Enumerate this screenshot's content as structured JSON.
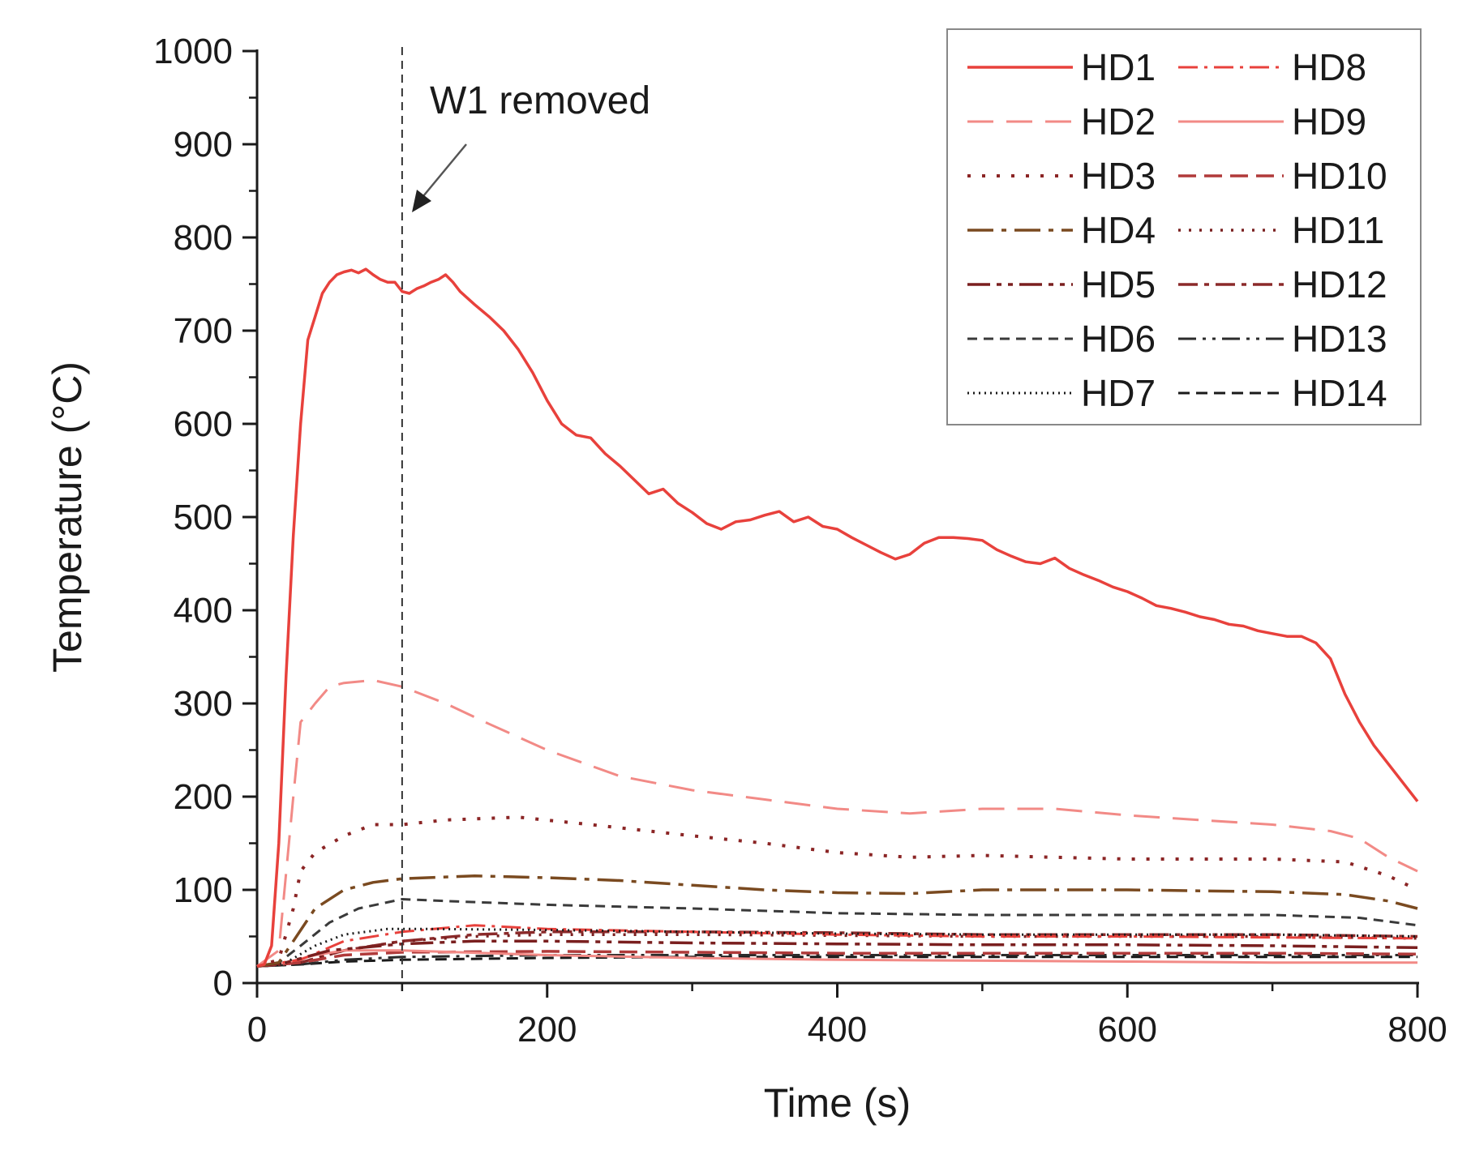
{
  "chart_data": {
    "type": "line",
    "title": "",
    "xlabel": "Time (s)",
    "ylabel": "Temperature (°C)",
    "xlim": [
      0,
      800
    ],
    "ylim": [
      0,
      1000
    ],
    "xticks": [
      0,
      200,
      400,
      600,
      800
    ],
    "yticks": [
      0,
      100,
      200,
      300,
      400,
      500,
      600,
      700,
      800,
      900,
      1000
    ],
    "grid": false,
    "legend_position": "top-right",
    "annotation": {
      "text": "W1 removed",
      "x": 100
    },
    "series": [
      {
        "name": "HD1",
        "color": "#e8413c",
        "dash": "solid",
        "width": 3.5,
        "points": [
          [
            0,
            18
          ],
          [
            5,
            20
          ],
          [
            10,
            40
          ],
          [
            15,
            150
          ],
          [
            20,
            330
          ],
          [
            25,
            480
          ],
          [
            30,
            600
          ],
          [
            35,
            690
          ],
          [
            40,
            715
          ],
          [
            45,
            740
          ],
          [
            50,
            752
          ],
          [
            55,
            760
          ],
          [
            60,
            763
          ],
          [
            65,
            765
          ],
          [
            70,
            762
          ],
          [
            75,
            766
          ],
          [
            80,
            760
          ],
          [
            85,
            755
          ],
          [
            90,
            752
          ],
          [
            95,
            752
          ],
          [
            100,
            742
          ],
          [
            105,
            740
          ],
          [
            110,
            745
          ],
          [
            115,
            748
          ],
          [
            120,
            752
          ],
          [
            125,
            755
          ],
          [
            130,
            760
          ],
          [
            135,
            752
          ],
          [
            140,
            742
          ],
          [
            145,
            735
          ],
          [
            150,
            728
          ],
          [
            160,
            715
          ],
          [
            170,
            700
          ],
          [
            180,
            680
          ],
          [
            190,
            655
          ],
          [
            200,
            625
          ],
          [
            210,
            600
          ],
          [
            220,
            588
          ],
          [
            230,
            585
          ],
          [
            240,
            568
          ],
          [
            250,
            555
          ],
          [
            260,
            540
          ],
          [
            270,
            525
          ],
          [
            280,
            530
          ],
          [
            290,
            515
          ],
          [
            300,
            505
          ],
          [
            310,
            493
          ],
          [
            320,
            487
          ],
          [
            330,
            495
          ],
          [
            340,
            497
          ],
          [
            350,
            502
          ],
          [
            360,
            506
          ],
          [
            370,
            495
          ],
          [
            380,
            500
          ],
          [
            390,
            490
          ],
          [
            400,
            487
          ],
          [
            410,
            478
          ],
          [
            420,
            470
          ],
          [
            430,
            462
          ],
          [
            440,
            455
          ],
          [
            450,
            460
          ],
          [
            460,
            472
          ],
          [
            470,
            478
          ],
          [
            480,
            478
          ],
          [
            490,
            477
          ],
          [
            500,
            475
          ],
          [
            510,
            465
          ],
          [
            520,
            458
          ],
          [
            530,
            452
          ],
          [
            540,
            450
          ],
          [
            550,
            456
          ],
          [
            560,
            445
          ],
          [
            570,
            438
          ],
          [
            580,
            432
          ],
          [
            590,
            425
          ],
          [
            600,
            420
          ],
          [
            610,
            413
          ],
          [
            620,
            405
          ],
          [
            630,
            402
          ],
          [
            640,
            398
          ],
          [
            650,
            393
          ],
          [
            660,
            390
          ],
          [
            670,
            385
          ],
          [
            680,
            383
          ],
          [
            690,
            378
          ],
          [
            700,
            375
          ],
          [
            710,
            372
          ],
          [
            720,
            372
          ],
          [
            730,
            365
          ],
          [
            740,
            348
          ],
          [
            750,
            310
          ],
          [
            760,
            280
          ],
          [
            770,
            255
          ],
          [
            780,
            235
          ],
          [
            790,
            215
          ],
          [
            800,
            195
          ]
        ]
      },
      {
        "name": "HD2",
        "color": "#f28a86",
        "dash": "32,16",
        "width": 3,
        "points": [
          [
            0,
            18
          ],
          [
            15,
            35
          ],
          [
            25,
            200
          ],
          [
            30,
            280
          ],
          [
            40,
            300
          ],
          [
            50,
            318
          ],
          [
            60,
            322
          ],
          [
            80,
            325
          ],
          [
            100,
            318
          ],
          [
            130,
            300
          ],
          [
            160,
            278
          ],
          [
            200,
            250
          ],
          [
            250,
            222
          ],
          [
            300,
            207
          ],
          [
            350,
            197
          ],
          [
            400,
            187
          ],
          [
            450,
            182
          ],
          [
            500,
            187
          ],
          [
            550,
            187
          ],
          [
            600,
            180
          ],
          [
            650,
            175
          ],
          [
            700,
            170
          ],
          [
            740,
            163
          ],
          [
            760,
            155
          ],
          [
            780,
            135
          ],
          [
            800,
            120
          ]
        ]
      },
      {
        "name": "HD3",
        "color": "#8b2525",
        "dash": "4,14",
        "width": 4,
        "points": [
          [
            0,
            18
          ],
          [
            15,
            25
          ],
          [
            25,
            80
          ],
          [
            30,
            120
          ],
          [
            40,
            140
          ],
          [
            60,
            158
          ],
          [
            80,
            170
          ],
          [
            100,
            170
          ],
          [
            130,
            175
          ],
          [
            180,
            178
          ],
          [
            230,
            170
          ],
          [
            300,
            158
          ],
          [
            350,
            150
          ],
          [
            400,
            140
          ],
          [
            450,
            135
          ],
          [
            500,
            137
          ],
          [
            550,
            135
          ],
          [
            600,
            133
          ],
          [
            650,
            133
          ],
          [
            700,
            133
          ],
          [
            750,
            130
          ],
          [
            780,
            115
          ],
          [
            800,
            100
          ]
        ]
      },
      {
        "name": "HD4",
        "color": "#7a4a20",
        "dash": "32,10,6,10",
        "width": 3.5,
        "points": [
          [
            0,
            18
          ],
          [
            15,
            22
          ],
          [
            25,
            45
          ],
          [
            40,
            80
          ],
          [
            60,
            100
          ],
          [
            80,
            108
          ],
          [
            100,
            112
          ],
          [
            150,
            115
          ],
          [
            200,
            113
          ],
          [
            250,
            110
          ],
          [
            300,
            105
          ],
          [
            350,
            100
          ],
          [
            400,
            97
          ],
          [
            450,
            96
          ],
          [
            500,
            100
          ],
          [
            550,
            100
          ],
          [
            600,
            100
          ],
          [
            650,
            99
          ],
          [
            700,
            98
          ],
          [
            750,
            95
          ],
          [
            780,
            88
          ],
          [
            800,
            80
          ]
        ]
      },
      {
        "name": "HD5",
        "color": "#7a1f1f",
        "dash": "28,8,6,8,6,8",
        "width": 3.5,
        "points": [
          [
            0,
            18
          ],
          [
            20,
            22
          ],
          [
            50,
            35
          ],
          [
            100,
            42
          ],
          [
            150,
            45
          ],
          [
            200,
            45
          ],
          [
            300,
            43
          ],
          [
            400,
            42
          ],
          [
            500,
            41
          ],
          [
            600,
            41
          ],
          [
            700,
            40
          ],
          [
            800,
            38
          ]
        ]
      },
      {
        "name": "HD6",
        "color": "#3a3a3a",
        "dash": "12,8",
        "width": 3,
        "points": [
          [
            0,
            18
          ],
          [
            15,
            22
          ],
          [
            30,
            40
          ],
          [
            50,
            65
          ],
          [
            70,
            80
          ],
          [
            100,
            90
          ],
          [
            130,
            88
          ],
          [
            200,
            84
          ],
          [
            300,
            80
          ],
          [
            400,
            75
          ],
          [
            500,
            73
          ],
          [
            600,
            73
          ],
          [
            700,
            73
          ],
          [
            760,
            70
          ],
          [
            800,
            62
          ]
        ]
      },
      {
        "name": "HD7",
        "color": "#1a1a1a",
        "dash": "2,5",
        "width": 3,
        "points": [
          [
            0,
            18
          ],
          [
            20,
            22
          ],
          [
            40,
            40
          ],
          [
            60,
            52
          ],
          [
            90,
            58
          ],
          [
            120,
            58
          ],
          [
            200,
            57
          ],
          [
            300,
            55
          ],
          [
            400,
            53
          ],
          [
            500,
            52
          ],
          [
            600,
            52
          ],
          [
            700,
            52
          ],
          [
            800,
            50
          ]
        ]
      },
      {
        "name": "HD8",
        "color": "#e8413c",
        "dash": "24,8,4,8",
        "width": 3,
        "points": [
          [
            0,
            18
          ],
          [
            30,
            25
          ],
          [
            60,
            45
          ],
          [
            100,
            55
          ],
          [
            150,
            62
          ],
          [
            200,
            58
          ],
          [
            300,
            55
          ],
          [
            400,
            52
          ],
          [
            500,
            50
          ],
          [
            600,
            50
          ],
          [
            700,
            49
          ],
          [
            800,
            48
          ]
        ]
      },
      {
        "name": "HD9",
        "color": "#f28a86",
        "dash": "solid",
        "width": 3,
        "points": [
          [
            0,
            18
          ],
          [
            20,
            22
          ],
          [
            40,
            30
          ],
          [
            60,
            35
          ],
          [
            100,
            35
          ],
          [
            200,
            30
          ],
          [
            300,
            27
          ],
          [
            400,
            25
          ],
          [
            500,
            24
          ],
          [
            600,
            23
          ],
          [
            700,
            22
          ],
          [
            800,
            22
          ]
        ]
      },
      {
        "name": "HD10",
        "color": "#b03a3a",
        "dash": "22,10",
        "width": 3.5,
        "points": [
          [
            0,
            18
          ],
          [
            30,
            22
          ],
          [
            60,
            30
          ],
          [
            100,
            33
          ],
          [
            200,
            34
          ],
          [
            300,
            33
          ],
          [
            400,
            32
          ],
          [
            500,
            32
          ],
          [
            600,
            32
          ],
          [
            700,
            32
          ],
          [
            800,
            31
          ]
        ]
      },
      {
        "name": "HD11",
        "color": "#7a2020",
        "dash": "3,10",
        "width": 3.5,
        "points": [
          [
            0,
            18
          ],
          [
            30,
            22
          ],
          [
            60,
            35
          ],
          [
            100,
            45
          ],
          [
            150,
            50
          ],
          [
            200,
            52
          ],
          [
            300,
            52
          ],
          [
            400,
            51
          ],
          [
            500,
            50
          ],
          [
            600,
            50
          ],
          [
            700,
            50
          ],
          [
            800,
            48
          ]
        ]
      },
      {
        "name": "HD12",
        "color": "#8b2a2a",
        "dash": "24,8,6,8",
        "width": 3.5,
        "points": [
          [
            0,
            18
          ],
          [
            30,
            22
          ],
          [
            60,
            35
          ],
          [
            100,
            45
          ],
          [
            150,
            52
          ],
          [
            200,
            55
          ],
          [
            300,
            55
          ],
          [
            400,
            54
          ],
          [
            500,
            52
          ],
          [
            600,
            52
          ],
          [
            700,
            52
          ],
          [
            800,
            50
          ]
        ]
      },
      {
        "name": "HD13",
        "color": "#2b2b2b",
        "dash": "22,8,4,8,4,8",
        "width": 3,
        "points": [
          [
            0,
            18
          ],
          [
            30,
            20
          ],
          [
            60,
            25
          ],
          [
            100,
            28
          ],
          [
            200,
            30
          ],
          [
            300,
            30
          ],
          [
            400,
            30
          ],
          [
            500,
            30
          ],
          [
            600,
            30
          ],
          [
            700,
            30
          ],
          [
            800,
            30
          ]
        ]
      },
      {
        "name": "HD14",
        "color": "#1a1a1a",
        "dash": "14,8",
        "width": 3,
        "points": [
          [
            0,
            18
          ],
          [
            30,
            20
          ],
          [
            60,
            23
          ],
          [
            100,
            25
          ],
          [
            200,
            27
          ],
          [
            300,
            28
          ],
          [
            400,
            28
          ],
          [
            500,
            28
          ],
          [
            600,
            28
          ],
          [
            700,
            28
          ],
          [
            800,
            28
          ]
        ]
      }
    ]
  }
}
